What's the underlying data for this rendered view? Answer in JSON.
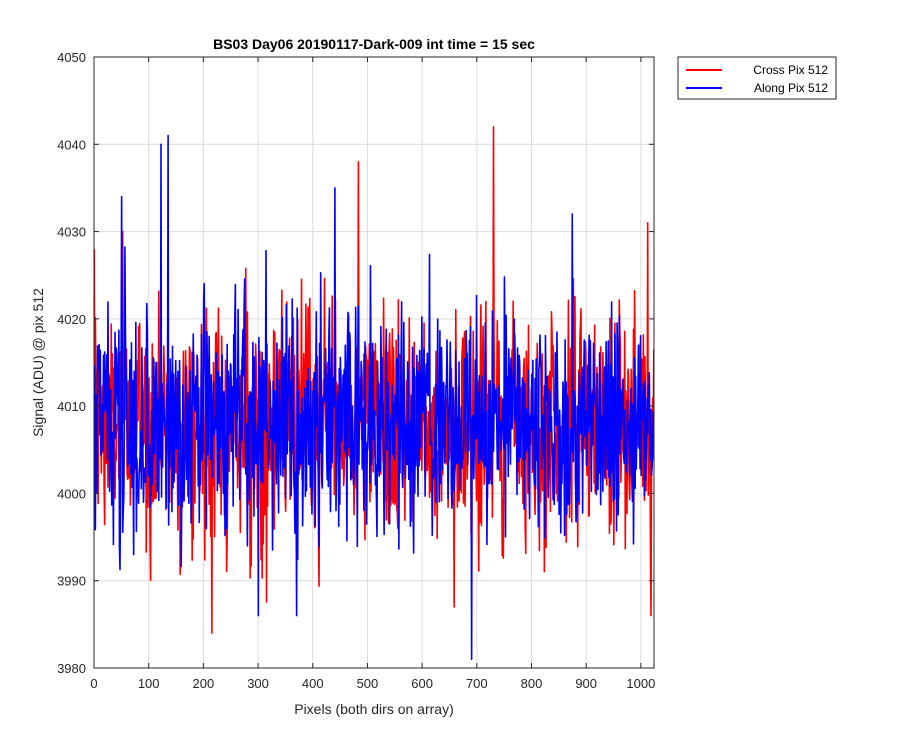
{
  "chart_data": {
    "type": "line",
    "title": "BS03 Day06 20190117-Dark-009 int time = 15 sec",
    "xlabel": "Pixels (both dirs on array)",
    "ylabel": "Signal (ADU) @ pix 512",
    "xlim": [
      0,
      1024
    ],
    "ylim": [
      3980,
      4050
    ],
    "xticks": [
      0,
      100,
      200,
      300,
      400,
      500,
      600,
      700,
      800,
      900,
      1000
    ],
    "yticks": [
      3980,
      3990,
      4000,
      4010,
      4020,
      4030,
      4040,
      4050
    ],
    "grid": true,
    "legend_position": "outside-top-right",
    "series": [
      {
        "name": "Cross Pix 512",
        "color": "#ff0000",
        "n_points": 1024,
        "mean": 4008,
        "std": 6.5,
        "peaks": [
          {
            "x": 0,
            "y": 4028
          },
          {
            "x": 52,
            "y": 4030
          },
          {
            "x": 215,
            "y": 3984
          },
          {
            "x": 483,
            "y": 4038
          },
          {
            "x": 658,
            "y": 3987
          },
          {
            "x": 730,
            "y": 4042
          },
          {
            "x": 1012,
            "y": 4031
          },
          {
            "x": 1018,
            "y": 3986
          }
        ]
      },
      {
        "name": "Along Pix 512",
        "color": "#0000ff",
        "n_points": 1024,
        "mean": 4008,
        "std": 6.5,
        "peaks": [
          {
            "x": 50,
            "y": 4034
          },
          {
            "x": 122,
            "y": 4040
          },
          {
            "x": 135,
            "y": 4041
          },
          {
            "x": 300,
            "y": 3986
          },
          {
            "x": 370,
            "y": 3986
          },
          {
            "x": 440,
            "y": 4035
          },
          {
            "x": 690,
            "y": 3981
          },
          {
            "x": 874,
            "y": 4032
          }
        ]
      }
    ]
  }
}
